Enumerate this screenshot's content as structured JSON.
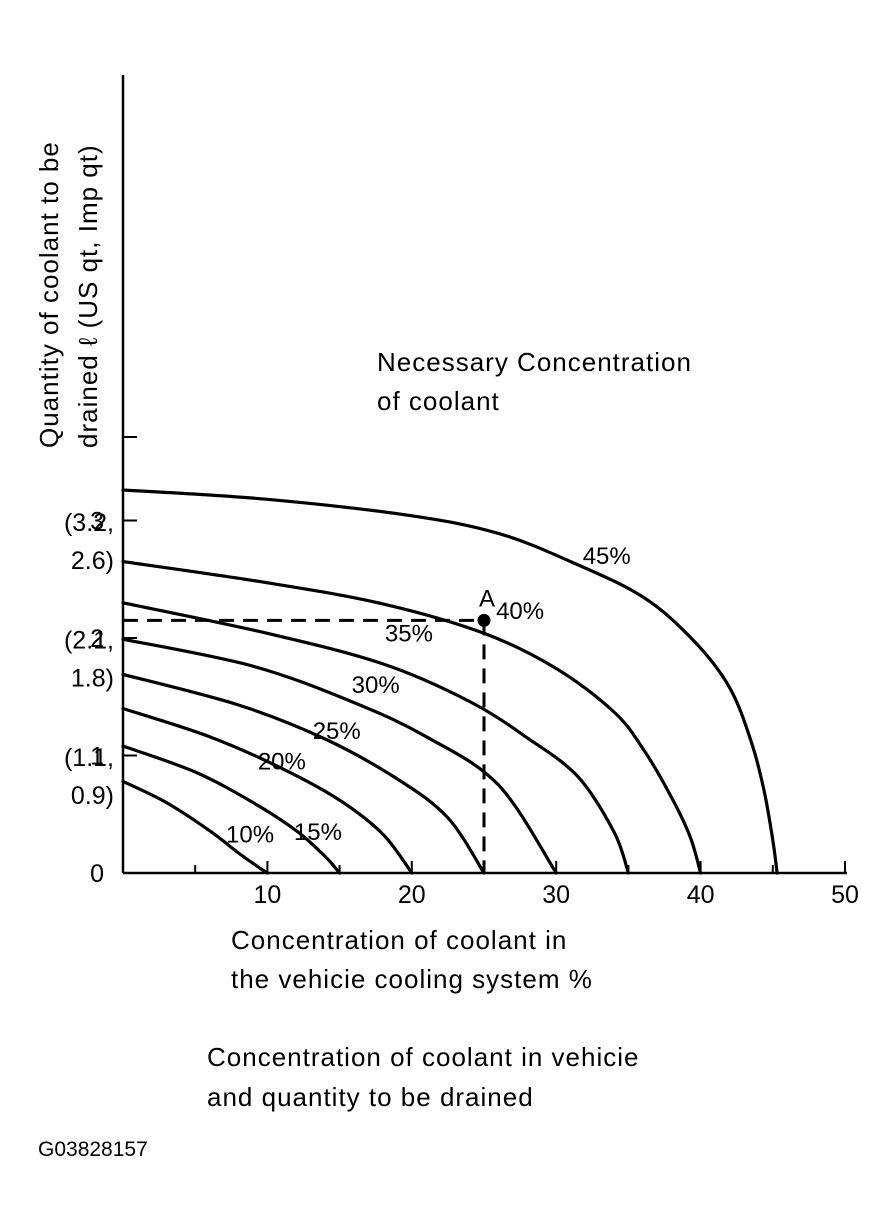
{
  "chart_data": {
    "type": "line",
    "title": "Necessary Concentration of coolant",
    "title_lines": [
      "Necessary Concentration",
      "of coolant"
    ],
    "xlabel": "Concentration of coolant in the vehicie cooling system %",
    "xlabel_lines": [
      "Concentration of coolant in",
      "the vehicie cooling system %"
    ],
    "ylabel": "Quantity of coolant to be drained ℓ (US qt, Imp qt)",
    "ylabel_lines": [
      "Quantity of coolant to be",
      "drained ℓ (US qt, Imp qt)"
    ],
    "xlim": [
      0,
      50
    ],
    "ylim": [
      0,
      3.4
    ],
    "x_ticks": [
      {
        "value": 0,
        "label": "0"
      },
      {
        "value": 10,
        "label": "10"
      },
      {
        "value": 20,
        "label": "20"
      },
      {
        "value": 30,
        "label": "30"
      },
      {
        "value": 40,
        "label": "40"
      },
      {
        "value": 50,
        "label": "50"
      }
    ],
    "x_minor_ticks": [
      5,
      15,
      25,
      35,
      45
    ],
    "y_ticks": [
      {
        "value": 0,
        "label": "0"
      },
      {
        "value": 1,
        "label": "1"
      },
      {
        "value": 2,
        "label": "2"
      },
      {
        "value": 3,
        "label": "3"
      }
    ],
    "y_annotations": [
      {
        "value": 0.8,
        "lines": [
          "(1.1,",
          "0.9)"
        ]
      },
      {
        "value": 1.8,
        "lines": [
          "(2.1,",
          "1.8)"
        ]
      },
      {
        "value": 2.8,
        "lines": [
          "(3.2,",
          "2.6)"
        ]
      }
    ],
    "grid": false,
    "series": [
      {
        "name": "10%",
        "x": [
          0,
          3,
          6,
          8,
          9.5,
          10
        ],
        "y": [
          0.78,
          0.6,
          0.36,
          0.17,
          0.04,
          0
        ]
      },
      {
        "name": "15%",
        "x": [
          0,
          5,
          9,
          12,
          14,
          15
        ],
        "y": [
          1.08,
          0.86,
          0.6,
          0.36,
          0.14,
          0
        ]
      },
      {
        "name": "20%",
        "x": [
          0,
          6,
          11,
          15,
          18,
          20
        ],
        "y": [
          1.4,
          1.16,
          0.89,
          0.62,
          0.33,
          0
        ]
      },
      {
        "name": "25%",
        "x": [
          0,
          8,
          14,
          19,
          22.5,
          25
        ],
        "y": [
          1.69,
          1.43,
          1.14,
          0.8,
          0.47,
          0
        ]
      },
      {
        "name": "30%",
        "x": [
          0,
          9,
          16,
          21,
          26,
          30
        ],
        "y": [
          1.99,
          1.76,
          1.45,
          1.16,
          0.75,
          0
        ]
      },
      {
        "name": "35%",
        "x": [
          0,
          10,
          18,
          24,
          28,
          31.5,
          34,
          35
        ],
        "y": [
          2.3,
          2.04,
          1.78,
          1.46,
          1.15,
          0.82,
          0.35,
          0
        ]
      },
      {
        "name": "40%",
        "x": [
          0,
          10,
          18,
          25,
          30,
          34,
          36,
          38,
          39.3,
          40
        ],
        "y": [
          2.65,
          2.47,
          2.29,
          2.04,
          1.74,
          1.37,
          1.06,
          0.64,
          0.3,
          0
        ]
      },
      {
        "name": "45%",
        "x": [
          0,
          10,
          20,
          26,
          31,
          36,
          39.5,
          42,
          43.5,
          44.4,
          45,
          45.3
        ],
        "y": [
          3.26,
          3.18,
          3.04,
          2.89,
          2.65,
          2.35,
          1.98,
          1.58,
          1.12,
          0.7,
          0.28,
          0
        ]
      }
    ],
    "series_labels": [
      {
        "text": "10%",
        "x": 8.8,
        "y": 0.26
      },
      {
        "text": "15%",
        "x": 13.5,
        "y": 0.28
      },
      {
        "text": "20%",
        "x": 11,
        "y": 0.88
      },
      {
        "text": "25%",
        "x": 14.8,
        "y": 1.14
      },
      {
        "text": "30%",
        "x": 17.5,
        "y": 1.53
      },
      {
        "text": "35%",
        "x": 19.8,
        "y": 1.97
      },
      {
        "text": "40%",
        "x": 27.5,
        "y": 2.16
      },
      {
        "text": "45%",
        "x": 33.5,
        "y": 2.63
      }
    ],
    "point": {
      "label": "A",
      "x": 25,
      "y": 2.15
    },
    "reference_lines": {
      "style": "dashed",
      "x": 25,
      "y": 2.15
    }
  },
  "caption_lines": [
    "Concentration of coolant in vehicie",
    "and quantity to be drained"
  ],
  "figure_code": "G03828157"
}
